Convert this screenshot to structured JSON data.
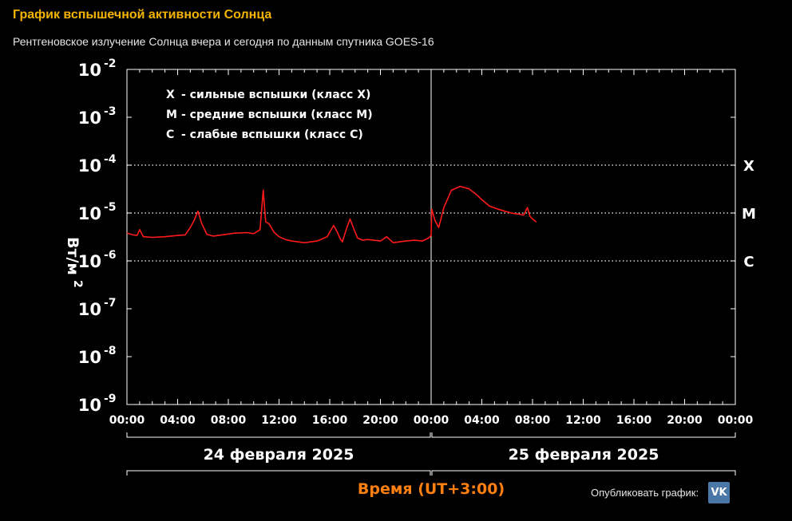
{
  "header": {
    "title": "График вспышечной активности Солнца",
    "subtitle": "Рентгеновское излучение Солнца вчера и сегодня по данным спутника GOES-16"
  },
  "share": {
    "label": "Опубликовать график:",
    "vk_icon_text": "VK"
  },
  "colors": {
    "title": "#f5b400",
    "series": "#ff1a1a",
    "x_title": "#ff7f10",
    "vk": "#4a76a8"
  },
  "chart_data": {
    "type": "line",
    "title": "",
    "ylabel_main": "Вт/м",
    "ylabel_sup": "2",
    "xlabel": "Время (UT+3:00)",
    "y_scale": "log",
    "ylim": [
      1e-09,
      0.01
    ],
    "y_ticks": [
      {
        "base": "10",
        "exp": "-2",
        "value": 0.01
      },
      {
        "base": "10",
        "exp": "-3",
        "value": 0.001
      },
      {
        "base": "10",
        "exp": "-4",
        "value": 0.0001
      },
      {
        "base": "10",
        "exp": "-5",
        "value": 1e-05
      },
      {
        "base": "10",
        "exp": "-6",
        "value": 1e-06
      },
      {
        "base": "10",
        "exp": "-7",
        "value": 1e-07
      },
      {
        "base": "10",
        "exp": "-8",
        "value": 1e-08
      },
      {
        "base": "10",
        "exp": "-9",
        "value": 1e-09
      }
    ],
    "x_unit": "hours",
    "xlim": [
      0,
      48
    ],
    "x_ticks": [
      {
        "label": "00:00",
        "value": 0
      },
      {
        "label": "04:00",
        "value": 4
      },
      {
        "label": "08:00",
        "value": 8
      },
      {
        "label": "12:00",
        "value": 12
      },
      {
        "label": "16:00",
        "value": 16
      },
      {
        "label": "20:00",
        "value": 20
      },
      {
        "label": "00:00",
        "value": 24
      },
      {
        "label": "04:00",
        "value": 28
      },
      {
        "label": "08:00",
        "value": 32
      },
      {
        "label": "12:00",
        "value": 36
      },
      {
        "label": "16:00",
        "value": 40
      },
      {
        "label": "20:00",
        "value": 44
      },
      {
        "label": "00:00",
        "value": 48
      }
    ],
    "days": [
      {
        "label": "24 февраля 2025",
        "start": 0,
        "end": 24
      },
      {
        "label": "25 февраля 2025",
        "start": 24,
        "end": 48
      }
    ],
    "day_boundary": 24,
    "levels": [
      {
        "label": "X",
        "value": 0.0001
      },
      {
        "label": "M",
        "value": 1e-05
      },
      {
        "label": "C",
        "value": 1e-06
      }
    ],
    "legend": [
      {
        "key": "X",
        "text": "- сильные вспышки (класс X)"
      },
      {
        "key": "M",
        "text": "- средние вспышки (класс M)"
      },
      {
        "key": "C",
        "text": "- слабые вспышки (класс C)"
      }
    ],
    "grid": "dotted at class levels",
    "series": [
      {
        "x": [
          0,
          0.5,
          0.8,
          1.0,
          1.3,
          2.0,
          3.0,
          4.0,
          4.6,
          5.0,
          5.3,
          5.6,
          5.9,
          6.3,
          6.8,
          7.5,
          8.5,
          9.5,
          10.0,
          10.5,
          10.75,
          10.95,
          11.2,
          11.6,
          12.0,
          12.5,
          13.0,
          14.0,
          15.0,
          15.8,
          16.3,
          16.6,
          16.8,
          17.0,
          17.3,
          17.6,
          18.0,
          18.2,
          18.6,
          19.0,
          20.0,
          20.5,
          21.0,
          22.0,
          22.7,
          23.3,
          23.8,
          24.0,
          24.05,
          24.3,
          24.6,
          25.0,
          25.6,
          26.3,
          27.0,
          27.6,
          28.0,
          28.6,
          29.3,
          30.0,
          30.5,
          31.0,
          31.3,
          31.6,
          31.8,
          32.0,
          32.3
        ],
        "y": [
          3.8e-06,
          3.5e-06,
          3.4e-06,
          4.5e-06,
          3.2e-06,
          3.1e-06,
          3.2e-06,
          3.4e-06,
          3.5e-06,
          5e-06,
          7e-06,
          1.1e-05,
          6e-06,
          3.6e-06,
          3.3e-06,
          3.5e-06,
          3.8e-06,
          3.9e-06,
          3.7e-06,
          4.5e-06,
          3e-05,
          6.5e-06,
          6e-06,
          4e-06,
          3.2e-06,
          2.8e-06,
          2.6e-06,
          2.4e-06,
          2.6e-06,
          3.2e-06,
          5.5e-06,
          4e-06,
          3e-06,
          2.5e-06,
          4.5e-06,
          7.5e-06,
          4e-06,
          3e-06,
          2.7e-06,
          2.8e-06,
          2.6e-06,
          3.2e-06,
          2.4e-06,
          2.6e-06,
          2.7e-06,
          2.6e-06,
          3e-06,
          3.4e-06,
          1.2e-05,
          7e-06,
          5e-06,
          1.3e-05,
          3e-05,
          3.6e-05,
          3.2e-05,
          2.4e-05,
          1.9e-05,
          1.4e-05,
          1.2e-05,
          1.05e-05,
          9.8e-06,
          9.4e-06,
          9e-06,
          1.3e-05,
          8.5e-06,
          7.5e-06,
          6.5e-06
        ]
      }
    ]
  }
}
